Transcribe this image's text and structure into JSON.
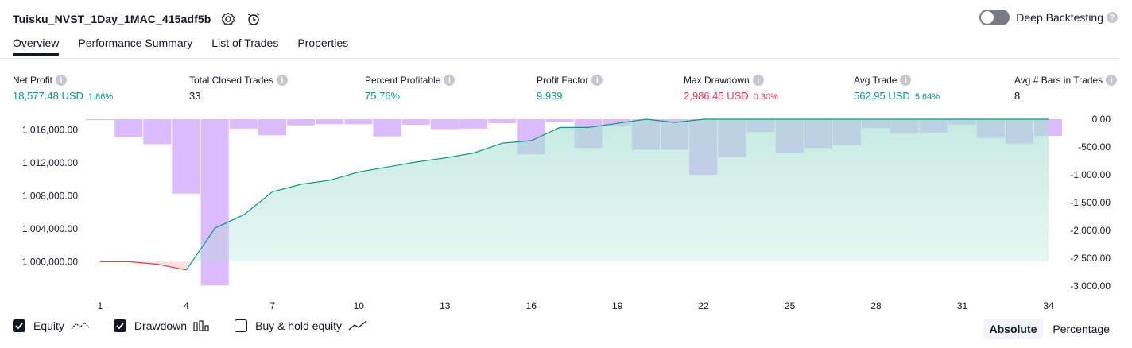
{
  "header": {
    "title": "Tuisku_NVST_1Day_1MAC_415adf5b",
    "deep_backtesting_label": "Deep Backtesting",
    "deep_backtesting_enabled": false
  },
  "tabs": [
    {
      "label": "Overview",
      "active": true
    },
    {
      "label": "Performance Summary",
      "active": false
    },
    {
      "label": "List of Trades",
      "active": false
    },
    {
      "label": "Properties",
      "active": false
    }
  ],
  "metrics": [
    {
      "label": "Net Profit",
      "value": "18,577.48 USD",
      "pct": "1.86%",
      "tone": "pos"
    },
    {
      "label": "Total Closed Trades",
      "value": "33",
      "pct": "",
      "tone": "neu"
    },
    {
      "label": "Percent Profitable",
      "value": "75.76%",
      "pct": "",
      "tone": "pos"
    },
    {
      "label": "Profit Factor",
      "value": "9.939",
      "pct": "",
      "tone": "pos"
    },
    {
      "label": "Max Drawdown",
      "value": "2,986.45 USD",
      "pct": "0.30%",
      "tone": "neg"
    },
    {
      "label": "Avg Trade",
      "value": "562.95 USD",
      "pct": "5.64%",
      "tone": "pos"
    },
    {
      "label": "Avg # Bars in Trades",
      "value": "8",
      "pct": "",
      "tone": "neu"
    }
  ],
  "colors": {
    "equity_up": "#089981",
    "equity_down": "#f23645",
    "equity_fill": "#a8e0d1",
    "drawdown_bar": "#c084fc",
    "axis_text": "#131722"
  },
  "chart_data": {
    "type": "bar",
    "x_ticks": [
      "1",
      "4",
      "7",
      "10",
      "13",
      "16",
      "19",
      "22",
      "25",
      "28",
      "31",
      "34"
    ],
    "left_axis": {
      "ticks": [
        "1,000,000.00",
        "1,004,000.00",
        "1,008,000.00",
        "1,012,000.00",
        "1,016,000.00"
      ],
      "range": [
        998500,
        1017300
      ]
    },
    "right_axis": {
      "ticks": [
        "0.00",
        "-500.00",
        "-1,000.00",
        "-1,500.00",
        "-2,000.00",
        "-2,500.00",
        "-3,000.00"
      ],
      "range": [
        -3000,
        0
      ]
    },
    "series": [
      {
        "name": "Equity",
        "x": [
          1,
          2,
          3,
          4,
          5,
          6,
          7,
          8,
          9,
          10,
          11,
          12,
          13,
          14,
          15,
          16,
          17,
          18,
          19,
          20,
          21,
          22,
          23,
          24,
          25,
          26,
          27,
          28,
          29,
          30,
          31,
          32,
          33,
          34
        ],
        "values": [
          1000000,
          1000000,
          999700,
          999000,
          1004100,
          1005700,
          1008500,
          1009400,
          1009900,
          1010900,
          1011500,
          1012100,
          1012600,
          1013200,
          1014400,
          1014700,
          1016300,
          1016300,
          1016800,
          1017300,
          1016900,
          1017400,
          1017300,
          1017400,
          1017400,
          1017500,
          1017500,
          1017800,
          1017800,
          1017800,
          1018100,
          1018200,
          1018400,
          1018600
        ]
      },
      {
        "name": "Drawdown",
        "x": [
          1,
          2,
          3,
          4,
          5,
          6,
          7,
          8,
          9,
          10,
          11,
          12,
          13,
          14,
          15,
          16,
          17,
          18,
          19,
          20,
          21,
          22,
          23,
          24,
          25,
          26,
          27,
          28,
          29,
          30,
          31,
          32,
          33,
          34
        ],
        "values": [
          -15,
          -320,
          -450,
          -1340,
          -2990,
          -170,
          -290,
          -110,
          -90,
          -90,
          -310,
          -100,
          -180,
          -170,
          -70,
          -630,
          -50,
          -520,
          -130,
          -550,
          -550,
          -1000,
          -680,
          -230,
          -610,
          -520,
          -470,
          -160,
          -260,
          -250,
          -100,
          -340,
          -440,
          -300
        ]
      }
    ]
  },
  "legend": [
    {
      "label": "Equity",
      "checked": true
    },
    {
      "label": "Drawdown",
      "checked": true
    },
    {
      "label": "Buy & hold equity",
      "checked": false
    }
  ],
  "mode": {
    "absolute": "Absolute",
    "percentage": "Percentage",
    "active": "absolute"
  }
}
